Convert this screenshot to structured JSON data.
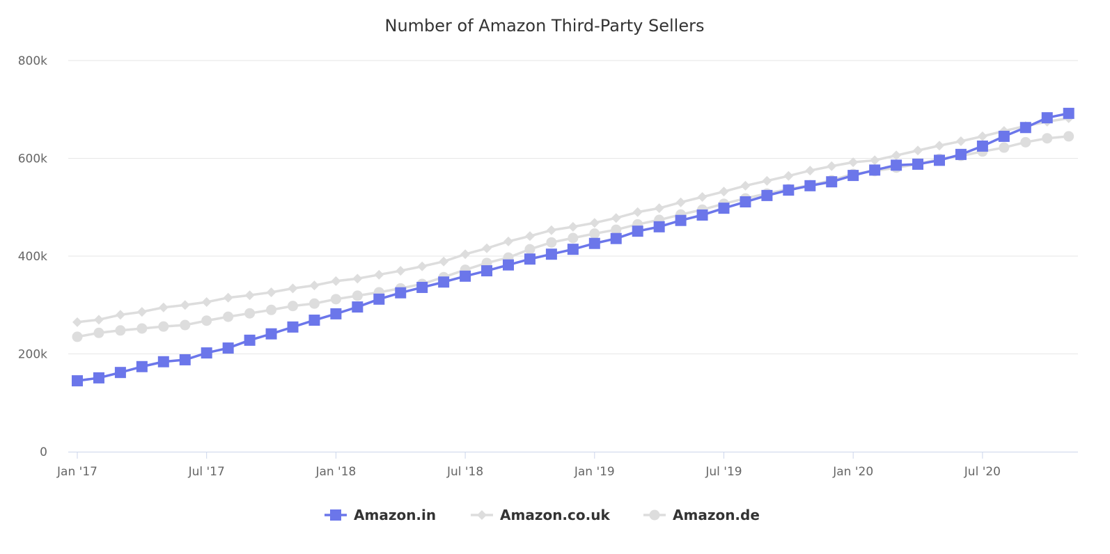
{
  "chart_data": {
    "type": "line",
    "title": "Number of Amazon Third-Party Sellers",
    "xlabel": "",
    "ylabel": "",
    "ylim": [
      0,
      800000
    ],
    "y_ticks": [
      0,
      200000,
      400000,
      600000,
      800000
    ],
    "y_tick_labels": [
      "0",
      "200k",
      "400k",
      "600k",
      "800k"
    ],
    "x_start": "2017-01",
    "x_interval": "monthly",
    "x_tick_labels": [
      "Jan '17",
      "Jul '17",
      "Jan '18",
      "Jul '18",
      "Jan '19",
      "Jul '19",
      "Jan '20",
      "Jul '20"
    ],
    "grid": true,
    "legend_placement": "bottom",
    "series": [
      {
        "name": "Amazon.in",
        "color": "#6b76ea",
        "marker": "square",
        "values": [
          145000,
          151000,
          162000,
          174000,
          184000,
          188000,
          202000,
          212000,
          228000,
          241000,
          255000,
          269000,
          282000,
          296000,
          312000,
          325000,
          336000,
          347000,
          359000,
          370000,
          382000,
          394000,
          404000,
          414000,
          426000,
          436000,
          451000,
          460000,
          473000,
          484000,
          498000,
          511000,
          524000,
          535000,
          544000,
          552000,
          565000,
          576000,
          586000,
          588000,
          596000,
          608000,
          625000,
          645000,
          663000,
          683000,
          692000
        ]
      },
      {
        "name": "Amazon.co.uk",
        "color": "#dddddd",
        "marker": "diamond",
        "values": [
          265000,
          270000,
          280000,
          286000,
          295000,
          300000,
          306000,
          315000,
          320000,
          326000,
          334000,
          340000,
          349000,
          354000,
          362000,
          370000,
          379000,
          389000,
          404000,
          416000,
          430000,
          441000,
          453000,
          460000,
          468000,
          478000,
          490000,
          498000,
          510000,
          521000,
          532000,
          544000,
          554000,
          564000,
          575000,
          584000,
          592000,
          596000,
          606000,
          616000,
          626000,
          635000,
          645000,
          656000,
          666000,
          675000,
          682000
        ]
      },
      {
        "name": "Amazon.de",
        "color": "#dddddd",
        "marker": "circle",
        "values": [
          235000,
          243000,
          248000,
          252000,
          256000,
          259000,
          268000,
          276000,
          283000,
          290000,
          298000,
          303000,
          312000,
          319000,
          326000,
          334000,
          343000,
          357000,
          372000,
          386000,
          397000,
          414000,
          428000,
          437000,
          446000,
          454000,
          465000,
          474000,
          485000,
          495000,
          507000,
          518000,
          528000,
          537000,
          545000,
          555000,
          568000,
          574000,
          581000,
          588000,
          599000,
          605000,
          614000,
          622000,
          633000,
          641000,
          645000
        ]
      }
    ]
  }
}
